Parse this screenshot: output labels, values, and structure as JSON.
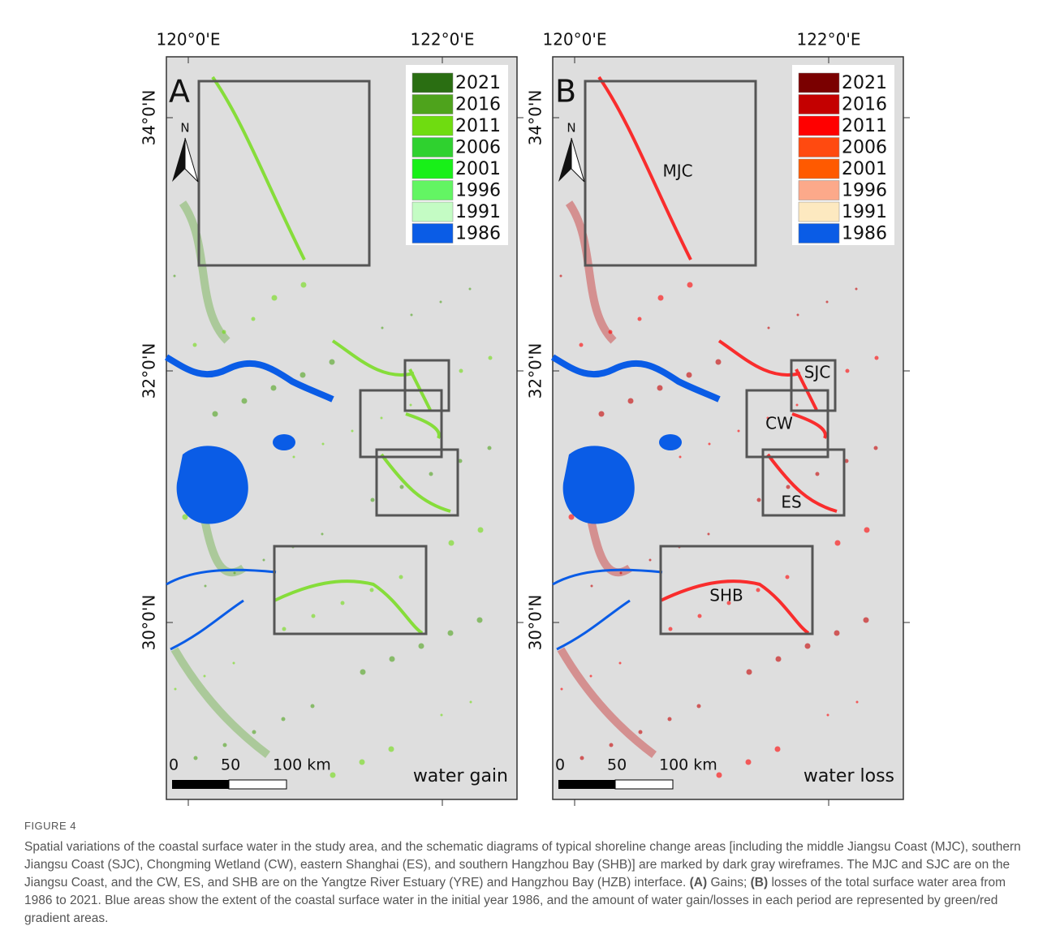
{
  "panels": [
    {
      "letter": "A",
      "lon_labels": [
        "120°0'E",
        "122°0'E"
      ],
      "lat_labels": [
        "34°0'N",
        "32°0'N",
        "30°0'N"
      ],
      "legend": [
        {
          "label": "2021",
          "color": "#2a6e12"
        },
        {
          "label": "2016",
          "color": "#4ea31c"
        },
        {
          "label": "2011",
          "color": "#6fdc10"
        },
        {
          "label": "2006",
          "color": "#2fd12f"
        },
        {
          "label": "2001",
          "color": "#18f018"
        },
        {
          "label": "1996",
          "color": "#63f563"
        },
        {
          "label": "1991",
          "color": "#c4fcc4"
        },
        {
          "label": "1986",
          "color": "#0a5ce6"
        }
      ],
      "scale_labels": [
        "0",
        "50",
        "100 km"
      ],
      "mode_label": "water gain"
    },
    {
      "letter": "B",
      "lon_labels": [
        "120°0'E",
        "122°0'E"
      ],
      "lat_labels": [
        "34°0'N",
        "32°0'N",
        "30°0'N"
      ],
      "legend": [
        {
          "label": "2021",
          "color": "#7a0000"
        },
        {
          "label": "2016",
          "color": "#c40000"
        },
        {
          "label": "2011",
          "color": "#ff0000"
        },
        {
          "label": "2006",
          "color": "#ff4a10"
        },
        {
          "label": "2001",
          "color": "#ff5a00"
        },
        {
          "label": "1996",
          "color": "#fca98a"
        },
        {
          "label": "1991",
          "color": "#fde9c0"
        },
        {
          "label": "1986",
          "color": "#0a5ce6"
        }
      ],
      "region_labels": [
        "MJC",
        "SJC",
        "CW",
        "ES",
        "SHB"
      ],
      "scale_labels": [
        "0",
        "50",
        "100 km"
      ],
      "mode_label": "water loss"
    }
  ],
  "caption": {
    "label": "FIGURE 4",
    "parts": [
      "Spatial variations of the coastal surface water in the study area, and the schematic diagrams of typical shoreline change areas [including the middle Jiangsu Coast (MJC), southern Jiangsu Coast (SJC), Chongming Wetland (CW), eastern Shanghai (ES), and southern Hangzhou Bay (SHB)] are marked by dark gray wireframes. The MJC and SJC are on the Jiangsu Coast, and the CW, ES, and SHB are on the Yangtze River Estuary (YRE) and Hangzhou Bay (HZB) interface.",
      "(A)",
      "Gains;",
      "(B)",
      "losses of the total surface water area from 1986 to 2021. Blue areas show the extent of the coastal surface water in the initial year 1986, and the amount of water gain/losses in each period are represented by green/red gradient areas."
    ]
  }
}
